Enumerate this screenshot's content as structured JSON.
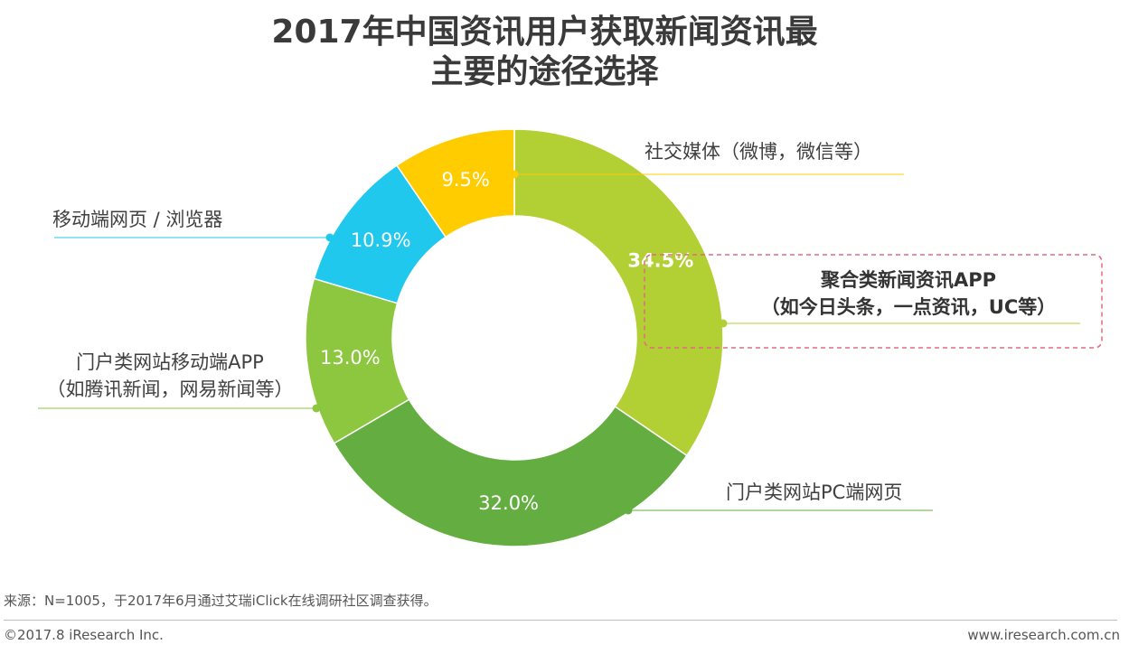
{
  "title": {
    "line1": "2017年中国资讯用户获取新闻资讯最",
    "line2": "主要的途径选择"
  },
  "chart_data": {
    "type": "pie",
    "variant": "donut",
    "title": "2017年中国资讯用户获取新闻资讯最主要的途径选择",
    "slices": [
      {
        "label": "聚合类新闻资讯APP（如今日头条，一点资讯，UC等）",
        "value": 34.5,
        "value_label": "34.5%",
        "color": "#b2cf34"
      },
      {
        "label": "门户类网站PC端网页",
        "value": 32.0,
        "value_label": "32.0%",
        "color": "#64ae41"
      },
      {
        "label": "门户类网站移动端APP（如腾讯新闻，网易新闻等）",
        "value": 13.0,
        "value_label": "13.0%",
        "color": "#8dc63f"
      },
      {
        "label": "移动端网页 / 浏览器",
        "value": 10.9,
        "value_label": "10.9%",
        "color": "#1fc8ec"
      },
      {
        "label": "社交媒体（微博，微信等）",
        "value": 9.5,
        "value_label": "9.5%",
        "color": "#ffcc00"
      }
    ]
  },
  "labels": {
    "social": "社交媒体（微博，微信等）",
    "aggregator_line1": "聚合类新闻资讯APP",
    "aggregator_line2": "（如今日头条，一点资讯，UC等）",
    "mobile_web": "移动端网页 / 浏览器",
    "portal_app_line1": "门户类网站移动端APP",
    "portal_app_line2": "（如腾讯新闻，网易新闻等）",
    "portal_pc": "门户类网站PC端网页"
  },
  "colors": {
    "social_line": "#ffcc00",
    "aggregator_line": "#b2cf34",
    "mobile_web_line": "#1fc8ec",
    "portal_app_line": "#8dc63f",
    "portal_pc_line": "#64ae41",
    "highlight_box": "#e06a82"
  },
  "footer": {
    "source": "来源：N=1005，于2017年6月通过艾瑞iClick在线调研社区调查获得。",
    "copyright": "©2017.8 iResearch Inc.",
    "website": "www.iresearch.com.cn"
  }
}
